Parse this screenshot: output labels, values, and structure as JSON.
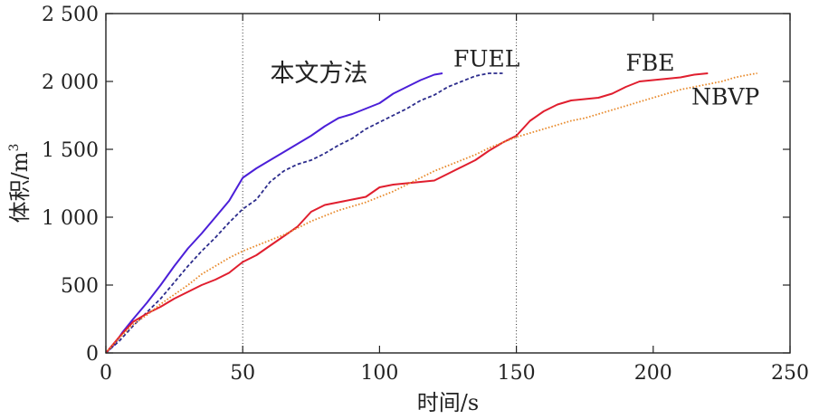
{
  "chart_data": {
    "type": "line",
    "xlabel": "时间/s",
    "ylabel": "体积/m",
    "ylabel_superscript": "3",
    "xlim": [
      0,
      250
    ],
    "ylim": [
      0,
      2500
    ],
    "xticks": [
      0,
      50,
      100,
      150,
      200,
      250
    ],
    "yticks": [
      0,
      500,
      1000,
      1500,
      2000,
      2500
    ],
    "ytick_labels": [
      "0",
      "500",
      "1 000",
      "1 500",
      "2 000",
      "2 500"
    ],
    "reference_lines_x": [
      50,
      150
    ],
    "grid": false,
    "legend": "inline labels",
    "series": [
      {
        "name": "本文方法",
        "color": "#4B1FD8",
        "style": "solid",
        "x": [
          0,
          3,
          6,
          10,
          15,
          20,
          25,
          30,
          35,
          40,
          45,
          50,
          55,
          60,
          65,
          70,
          75,
          80,
          85,
          90,
          95,
          100,
          105,
          110,
          115,
          120,
          123
        ],
        "y": [
          0,
          60,
          150,
          250,
          370,
          500,
          640,
          770,
          880,
          1000,
          1120,
          1290,
          1360,
          1420,
          1480,
          1540,
          1600,
          1670,
          1730,
          1760,
          1800,
          1840,
          1910,
          1960,
          2010,
          2050,
          2060
        ]
      },
      {
        "name": "FUEL",
        "color": "#2C2C8C",
        "style": "dashed",
        "x": [
          0,
          5,
          10,
          15,
          20,
          25,
          30,
          35,
          40,
          45,
          50,
          55,
          60,
          65,
          70,
          75,
          80,
          85,
          90,
          95,
          100,
          105,
          110,
          115,
          120,
          125,
          130,
          135,
          140,
          145
        ],
        "y": [
          0,
          90,
          200,
          300,
          400,
          520,
          640,
          750,
          850,
          960,
          1060,
          1130,
          1260,
          1340,
          1390,
          1420,
          1470,
          1530,
          1580,
          1650,
          1700,
          1750,
          1800,
          1860,
          1900,
          1960,
          2000,
          2040,
          2060,
          2060
        ]
      },
      {
        "name": "FBE",
        "color": "#E01E2E",
        "style": "solid",
        "x": [
          0,
          5,
          10,
          15,
          20,
          25,
          30,
          35,
          40,
          45,
          50,
          55,
          60,
          65,
          70,
          75,
          80,
          85,
          90,
          95,
          100,
          105,
          110,
          115,
          120,
          125,
          130,
          135,
          140,
          145,
          150,
          155,
          160,
          165,
          170,
          175,
          180,
          185,
          190,
          195,
          200,
          205,
          210,
          215,
          220
        ],
        "y": [
          0,
          120,
          230,
          290,
          340,
          400,
          450,
          500,
          540,
          590,
          670,
          720,
          790,
          860,
          930,
          1040,
          1090,
          1110,
          1130,
          1150,
          1220,
          1240,
          1250,
          1260,
          1270,
          1320,
          1370,
          1420,
          1490,
          1550,
          1600,
          1710,
          1780,
          1830,
          1860,
          1870,
          1880,
          1910,
          1960,
          2000,
          2010,
          2020,
          2030,
          2050,
          2060
        ]
      },
      {
        "name": "NBVP",
        "color": "#E88A2C",
        "style": "dotted",
        "x": [
          0,
          5,
          10,
          15,
          20,
          25,
          30,
          35,
          40,
          45,
          50,
          55,
          60,
          65,
          70,
          75,
          80,
          85,
          90,
          95,
          100,
          105,
          110,
          115,
          120,
          125,
          130,
          135,
          140,
          145,
          150,
          155,
          160,
          165,
          170,
          175,
          180,
          185,
          190,
          195,
          200,
          205,
          210,
          215,
          220,
          225,
          230,
          235,
          238
        ],
        "y": [
          0,
          110,
          210,
          280,
          360,
          430,
          500,
          580,
          640,
          700,
          750,
          790,
          830,
          870,
          920,
          970,
          1010,
          1050,
          1080,
          1110,
          1150,
          1190,
          1240,
          1290,
          1340,
          1380,
          1420,
          1460,
          1510,
          1550,
          1590,
          1620,
          1650,
          1680,
          1710,
          1730,
          1760,
          1790,
          1820,
          1850,
          1880,
          1910,
          1940,
          1960,
          1980,
          2000,
          2030,
          2050,
          2060
        ]
      }
    ],
    "labels": [
      {
        "text": "本文方法",
        "series": 0,
        "x": 60,
        "y": 2000
      },
      {
        "text": "FUEL",
        "series": 1,
        "x": 127,
        "y": 2110
      },
      {
        "text": "FBE",
        "series": 2,
        "x": 190,
        "y": 2080
      },
      {
        "text": "NBVP",
        "series": 3,
        "x": 214,
        "y": 1830
      }
    ]
  }
}
